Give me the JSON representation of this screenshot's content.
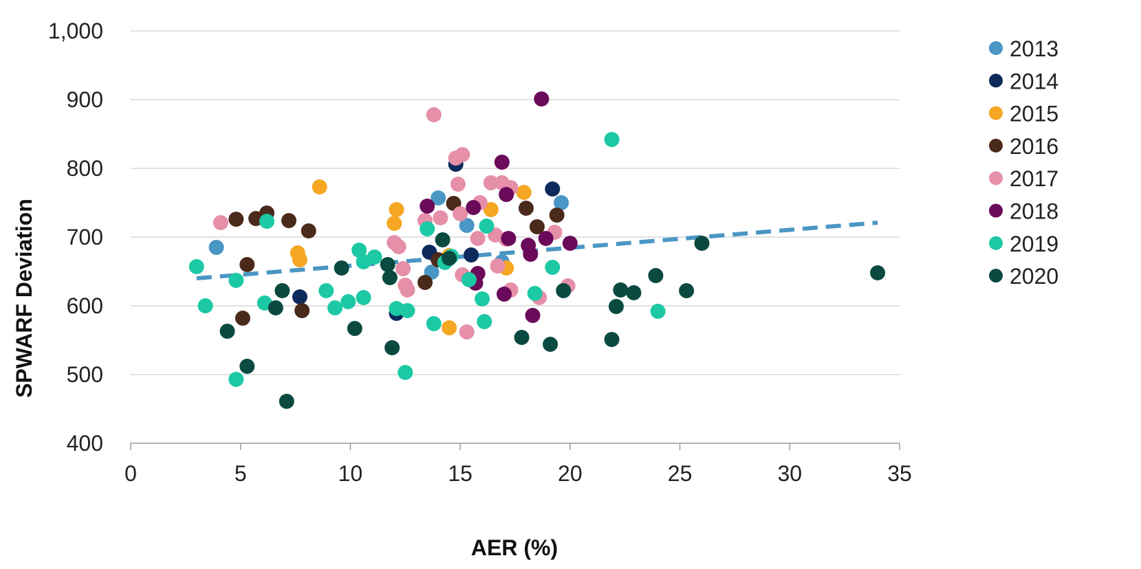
{
  "chart_data": {
    "type": "scatter",
    "xlabel": "AER (%)",
    "ylabel": "SPWARF Deviation",
    "xlim": [
      0,
      35
    ],
    "ylim": [
      400,
      1000
    ],
    "x_ticks": [
      "0",
      "5",
      "10",
      "15",
      "20",
      "25",
      "30",
      "35"
    ],
    "y_ticks": [
      "400",
      "500",
      "600",
      "700",
      "800",
      "900",
      "1,000"
    ],
    "grid": "horizontal",
    "legend_position": "right",
    "trendline": {
      "style": "dashed",
      "color": "#4a96c4",
      "points": [
        [
          3,
          640
        ],
        [
          34,
          721
        ]
      ]
    },
    "series": [
      {
        "name": "2013",
        "color": "#4a96c4",
        "points": [
          [
            3.9,
            685
          ],
          [
            14.0,
            757
          ],
          [
            15.3,
            717
          ],
          [
            16.9,
            664
          ],
          [
            19.6,
            750
          ],
          [
            13.7,
            649
          ]
        ]
      },
      {
        "name": "2014",
        "color": "#0c2a5c",
        "points": [
          [
            14.8,
            806
          ],
          [
            19.2,
            770
          ],
          [
            13.6,
            678
          ],
          [
            7.7,
            613
          ],
          [
            12.1,
            589
          ],
          [
            15.5,
            674
          ]
        ]
      },
      {
        "name": "2015",
        "color": "#f5a623",
        "points": [
          [
            8.6,
            773
          ],
          [
            12.1,
            740
          ],
          [
            12.0,
            720
          ],
          [
            16.4,
            740
          ],
          [
            17.9,
            765
          ],
          [
            7.6,
            677
          ],
          [
            7.7,
            667
          ],
          [
            14.5,
            673
          ],
          [
            14.5,
            568
          ],
          [
            17.1,
            655
          ]
        ]
      },
      {
        "name": "2016",
        "color": "#4a2a1a",
        "points": [
          [
            4.8,
            726
          ],
          [
            5.7,
            727
          ],
          [
            6.2,
            735
          ],
          [
            7.2,
            724
          ],
          [
            8.1,
            709
          ],
          [
            5.3,
            660
          ],
          [
            5.1,
            582
          ],
          [
            7.8,
            593
          ],
          [
            14.0,
            667
          ],
          [
            14.7,
            749
          ],
          [
            18.0,
            742
          ],
          [
            18.5,
            715
          ],
          [
            19.4,
            732
          ],
          [
            13.4,
            634
          ]
        ]
      },
      {
        "name": "2017",
        "color": "#e58fa8",
        "points": [
          [
            4.1,
            721
          ],
          [
            13.8,
            878
          ],
          [
            14.8,
            815
          ],
          [
            15.1,
            820
          ],
          [
            14.9,
            777
          ],
          [
            15.0,
            734
          ],
          [
            15.9,
            750
          ],
          [
            16.4,
            779
          ],
          [
            16.9,
            779
          ],
          [
            17.3,
            772
          ],
          [
            16.6,
            703
          ],
          [
            17.1,
            697
          ],
          [
            15.8,
            698
          ],
          [
            12.0,
            692
          ],
          [
            12.2,
            686
          ],
          [
            12.4,
            654
          ],
          [
            12.5,
            630
          ],
          [
            12.6,
            623
          ],
          [
            15.1,
            645
          ],
          [
            16.7,
            658
          ],
          [
            17.3,
            623
          ],
          [
            18.6,
            612
          ],
          [
            19.3,
            707
          ],
          [
            19.9,
            629
          ],
          [
            15.3,
            562
          ],
          [
            13.4,
            724
          ],
          [
            14.1,
            728
          ]
        ]
      },
      {
        "name": "2018",
        "color": "#6b0a5a",
        "points": [
          [
            18.7,
            901
          ],
          [
            16.9,
            809
          ],
          [
            17.1,
            762
          ],
          [
            13.5,
            745
          ],
          [
            15.6,
            743
          ],
          [
            17.2,
            698
          ],
          [
            18.1,
            688
          ],
          [
            18.2,
            675
          ],
          [
            18.9,
            698
          ],
          [
            20.0,
            691
          ],
          [
            15.8,
            647
          ],
          [
            15.7,
            633
          ],
          [
            17.0,
            617
          ],
          [
            18.3,
            586
          ]
        ]
      },
      {
        "name": "2019",
        "color": "#1cc9a4",
        "points": [
          [
            21.9,
            842
          ],
          [
            6.2,
            723
          ],
          [
            3.0,
            657
          ],
          [
            4.8,
            637
          ],
          [
            3.4,
            600
          ],
          [
            6.1,
            604
          ],
          [
            8.9,
            622
          ],
          [
            9.3,
            597
          ],
          [
            9.9,
            606
          ],
          [
            10.4,
            681
          ],
          [
            10.6,
            664
          ],
          [
            10.6,
            612
          ],
          [
            11.1,
            671
          ],
          [
            12.1,
            596
          ],
          [
            12.6,
            593
          ],
          [
            13.5,
            712
          ],
          [
            14.3,
            663
          ],
          [
            14.6,
            672
          ],
          [
            15.4,
            638
          ],
          [
            16.0,
            610
          ],
          [
            16.2,
            716
          ],
          [
            16.1,
            577
          ],
          [
            13.8,
            574
          ],
          [
            19.2,
            656
          ],
          [
            18.4,
            618
          ],
          [
            24.0,
            592
          ],
          [
            12.5,
            503
          ],
          [
            4.8,
            493
          ]
        ]
      },
      {
        "name": "2020",
        "color": "#0a4a40",
        "points": [
          [
            26.0,
            691
          ],
          [
            34.0,
            648
          ],
          [
            23.9,
            644
          ],
          [
            22.3,
            623
          ],
          [
            22.9,
            619
          ],
          [
            25.3,
            622
          ],
          [
            22.1,
            599
          ],
          [
            21.9,
            551
          ],
          [
            19.7,
            622
          ],
          [
            19.1,
            544
          ],
          [
            17.8,
            554
          ],
          [
            9.6,
            655
          ],
          [
            11.7,
            660
          ],
          [
            11.8,
            641
          ],
          [
            11.9,
            539
          ],
          [
            10.2,
            567
          ],
          [
            6.9,
            622
          ],
          [
            6.6,
            597
          ],
          [
            4.4,
            563
          ],
          [
            5.3,
            512
          ],
          [
            7.1,
            461
          ],
          [
            14.2,
            696
          ],
          [
            14.5,
            669
          ]
        ]
      }
    ]
  }
}
